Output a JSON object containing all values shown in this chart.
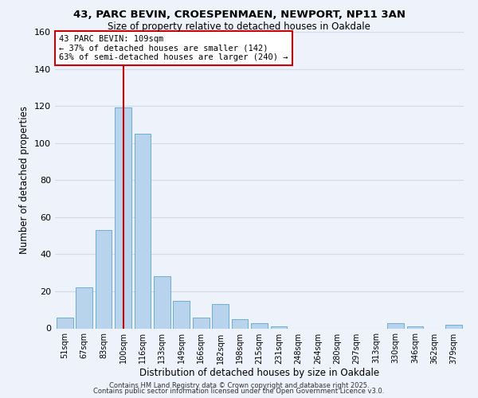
{
  "title": "43, PARC BEVIN, CROESPENMAEN, NEWPORT, NP11 3AN",
  "subtitle": "Size of property relative to detached houses in Oakdale",
  "xlabel": "Distribution of detached houses by size in Oakdale",
  "ylabel": "Number of detached properties",
  "bar_labels": [
    "51sqm",
    "67sqm",
    "83sqm",
    "100sqm",
    "116sqm",
    "133sqm",
    "149sqm",
    "166sqm",
    "182sqm",
    "198sqm",
    "215sqm",
    "231sqm",
    "248sqm",
    "264sqm",
    "280sqm",
    "297sqm",
    "313sqm",
    "330sqm",
    "346sqm",
    "362sqm",
    "379sqm"
  ],
  "bar_values": [
    6,
    22,
    53,
    119,
    105,
    28,
    15,
    6,
    13,
    5,
    3,
    1,
    0,
    0,
    0,
    0,
    0,
    3,
    1,
    0,
    2
  ],
  "bar_color": "#b8d4ec",
  "bar_edge_color": "#6aaed6",
  "vline_x": 3.0,
  "vline_color": "#cc0000",
  "annotation_title": "43 PARC BEVIN: 109sqm",
  "annotation_line1": "← 37% of detached houses are smaller (142)",
  "annotation_line2": "63% of semi-detached houses are larger (240) →",
  "annotation_box_color": "#ffffff",
  "annotation_box_edge": "#cc0000",
  "ylim": [
    0,
    160
  ],
  "yticks": [
    0,
    20,
    40,
    60,
    80,
    100,
    120,
    140,
    160
  ],
  "grid_color": "#d0daea",
  "background_color": "#eef2fa",
  "footer1": "Contains HM Land Registry data © Crown copyright and database right 2025.",
  "footer2": "Contains public sector information licensed under the Open Government Licence v3.0."
}
